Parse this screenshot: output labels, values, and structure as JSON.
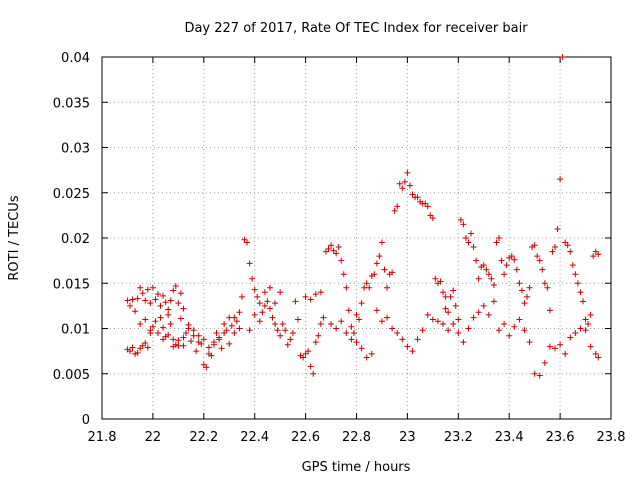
{
  "chart_data": {
    "type": "scatter",
    "title": "Day 227 of 2017, Rate Of TEC Index for receiver bair",
    "xlabel": "GPS time / hours",
    "ylabel": "ROTI / TECUs",
    "xlim": [
      21.8,
      23.8
    ],
    "ylim": [
      0,
      0.04
    ],
    "x_ticks": [
      "21.8",
      "22",
      "22.2",
      "22.4",
      "22.6",
      "22.8",
      "23",
      "23.2",
      "23.4",
      "23.6",
      "23.8"
    ],
    "y_ticks": [
      "0",
      "0.005",
      "0.01",
      "0.015",
      "0.02",
      "0.025",
      "0.03",
      "0.035",
      "0.04"
    ],
    "grid": true,
    "marker": "plus",
    "color": "#cc0000",
    "series": [
      {
        "points": [
          [
            21.9,
            0.0131
          ],
          [
            21.91,
            0.0125
          ],
          [
            21.92,
            0.0132
          ],
          [
            21.93,
            0.0119
          ],
          [
            21.94,
            0.0133
          ],
          [
            21.95,
            0.0145
          ],
          [
            21.96,
            0.0139
          ],
          [
            21.97,
            0.0131
          ],
          [
            21.98,
            0.0143
          ],
          [
            21.99,
            0.0128
          ],
          [
            22.0,
            0.0145
          ],
          [
            22.01,
            0.0132
          ],
          [
            22.02,
            0.0138
          ],
          [
            22.03,
            0.0125
          ],
          [
            22.04,
            0.0136
          ],
          [
            22.05,
            0.0129
          ],
          [
            22.06,
            0.0121
          ],
          [
            22.07,
            0.0131
          ],
          [
            22.08,
            0.0142
          ],
          [
            22.09,
            0.0147
          ],
          [
            22.1,
            0.0128
          ],
          [
            22.11,
            0.0139
          ],
          [
            22.12,
            0.0122
          ],
          [
            21.9,
            0.0077
          ],
          [
            21.91,
            0.0075
          ],
          [
            21.92,
            0.0079
          ],
          [
            21.93,
            0.0072
          ],
          [
            21.94,
            0.0073
          ],
          [
            21.95,
            0.0078
          ],
          [
            21.96,
            0.0081
          ],
          [
            21.97,
            0.0084
          ],
          [
            21.98,
            0.0079
          ],
          [
            21.99,
            0.0095
          ],
          [
            21.95,
            0.0105
          ],
          [
            21.97,
            0.011
          ],
          [
            21.99,
            0.0098
          ],
          [
            22.0,
            0.0102
          ],
          [
            22.01,
            0.0108
          ],
          [
            22.02,
            0.0095
          ],
          [
            22.03,
            0.0112
          ],
          [
            22.04,
            0.0101
          ],
          [
            22.05,
            0.0091
          ],
          [
            22.06,
            0.0115
          ],
          [
            22.07,
            0.0105
          ],
          [
            22.08,
            0.0088
          ],
          [
            22.09,
            0.0082
          ],
          [
            22.1,
            0.0087
          ],
          [
            22.11,
            0.0111
          ],
          [
            22.12,
            0.0081
          ],
          [
            22.13,
            0.0095
          ],
          [
            22.14,
            0.0104
          ],
          [
            22.15,
            0.0086
          ],
          [
            22.16,
            0.0098
          ],
          [
            22.17,
            0.0075
          ],
          [
            22.18,
            0.0092
          ],
          [
            22.19,
            0.0083
          ],
          [
            22.2,
            0.006
          ],
          [
            22.21,
            0.0057
          ],
          [
            22.22,
            0.0072
          ],
          [
            22.23,
            0.007
          ],
          [
            22.24,
            0.0082
          ],
          [
            22.25,
            0.0095
          ],
          [
            22.26,
            0.0088
          ],
          [
            22.27,
            0.0078
          ],
          [
            22.28,
            0.0105
          ],
          [
            22.29,
            0.0098
          ],
          [
            22.3,
            0.0112
          ],
          [
            22.31,
            0.0103
          ],
          [
            22.32,
            0.0095
          ],
          [
            22.33,
            0.0108
          ],
          [
            22.34,
            0.0118
          ],
          [
            22.35,
            0.0135
          ],
          [
            22.36,
            0.0198
          ],
          [
            22.37,
            0.0195
          ],
          [
            22.38,
            0.0172
          ],
          [
            22.39,
            0.0155
          ],
          [
            22.4,
            0.0143
          ],
          [
            22.41,
            0.0135
          ],
          [
            22.42,
            0.0128
          ],
          [
            22.43,
            0.0118
          ],
          [
            22.44,
            0.0125
          ],
          [
            22.45,
            0.013
          ],
          [
            22.46,
            0.0122
          ],
          [
            22.47,
            0.0112
          ],
          [
            22.48,
            0.0105
          ],
          [
            22.49,
            0.0098
          ],
          [
            22.5,
            0.0092
          ],
          [
            22.02,
            0.0095
          ],
          [
            22.04,
            0.0088
          ],
          [
            22.06,
            0.0093
          ],
          [
            22.08,
            0.008
          ],
          [
            22.1,
            0.0081
          ],
          [
            22.12,
            0.009
          ],
          [
            22.14,
            0.01
          ],
          [
            22.16,
            0.0092
          ],
          [
            22.18,
            0.0085
          ],
          [
            22.2,
            0.0088
          ],
          [
            22.22,
            0.0079
          ],
          [
            22.24,
            0.0085
          ],
          [
            22.26,
            0.009
          ],
          [
            22.28,
            0.0095
          ],
          [
            22.3,
            0.0083
          ],
          [
            22.32,
            0.0112
          ],
          [
            22.34,
            0.01
          ],
          [
            22.38,
            0.0098
          ],
          [
            22.4,
            0.0115
          ],
          [
            22.42,
            0.0108
          ],
          [
            22.44,
            0.014
          ],
          [
            22.46,
            0.0145
          ],
          [
            22.48,
            0.0128
          ],
          [
            22.5,
            0.014
          ],
          [
            22.51,
            0.0105
          ],
          [
            22.52,
            0.0098
          ],
          [
            22.53,
            0.0082
          ],
          [
            22.54,
            0.0088
          ],
          [
            22.55,
            0.0095
          ],
          [
            22.56,
            0.013
          ],
          [
            22.57,
            0.011
          ],
          [
            22.58,
            0.007
          ],
          [
            22.59,
            0.0068
          ],
          [
            22.6,
            0.0072
          ],
          [
            22.61,
            0.0075
          ],
          [
            22.62,
            0.0058
          ],
          [
            22.63,
            0.005
          ],
          [
            22.64,
            0.0085
          ],
          [
            22.65,
            0.0092
          ],
          [
            22.66,
            0.0105
          ],
          [
            22.67,
            0.0112
          ],
          [
            22.68,
            0.0185
          ],
          [
            22.69,
            0.0188
          ],
          [
            22.7,
            0.0192
          ],
          [
            22.71,
            0.0186
          ],
          [
            22.72,
            0.0183
          ],
          [
            22.73,
            0.019
          ],
          [
            22.74,
            0.0175
          ],
          [
            22.75,
            0.016
          ],
          [
            22.76,
            0.0145
          ],
          [
            22.77,
            0.012
          ],
          [
            22.78,
            0.0102
          ],
          [
            22.79,
            0.0095
          ],
          [
            22.8,
            0.0115
          ],
          [
            22.81,
            0.011
          ],
          [
            22.82,
            0.0128
          ],
          [
            22.83,
            0.0145
          ],
          [
            22.84,
            0.015
          ],
          [
            22.85,
            0.0145
          ],
          [
            22.86,
            0.0158
          ],
          [
            22.87,
            0.016
          ],
          [
            22.88,
            0.0172
          ],
          [
            22.89,
            0.018
          ],
          [
            22.9,
            0.0195
          ],
          [
            22.91,
            0.0165
          ],
          [
            22.92,
            0.0145
          ],
          [
            22.93,
            0.016
          ],
          [
            22.94,
            0.0162
          ],
          [
            22.95,
            0.023
          ],
          [
            22.96,
            0.0235
          ],
          [
            22.97,
            0.026
          ],
          [
            22.98,
            0.0255
          ],
          [
            22.99,
            0.0262
          ],
          [
            23.0,
            0.0272
          ],
          [
            23.01,
            0.0258
          ],
          [
            23.02,
            0.0248
          ],
          [
            23.03,
            0.0245
          ],
          [
            23.04,
            0.0245
          ],
          [
            23.05,
            0.024
          ],
          [
            23.06,
            0.0238
          ],
          [
            23.07,
            0.0238
          ],
          [
            23.08,
            0.0235
          ],
          [
            23.09,
            0.0225
          ],
          [
            23.1,
            0.0222
          ],
          [
            23.11,
            0.0155
          ],
          [
            23.12,
            0.015
          ],
          [
            23.13,
            0.0152
          ],
          [
            23.14,
            0.014
          ],
          [
            23.15,
            0.0135
          ],
          [
            22.6,
            0.0135
          ],
          [
            22.62,
            0.0132
          ],
          [
            22.64,
            0.0138
          ],
          [
            22.66,
            0.014
          ],
          [
            22.7,
            0.0105
          ],
          [
            22.72,
            0.01
          ],
          [
            22.74,
            0.0108
          ],
          [
            22.76,
            0.0095
          ],
          [
            22.78,
            0.0088
          ],
          [
            22.8,
            0.0085
          ],
          [
            22.82,
            0.0078
          ],
          [
            22.84,
            0.0068
          ],
          [
            22.86,
            0.0072
          ],
          [
            22.88,
            0.012
          ],
          [
            22.9,
            0.0108
          ],
          [
            22.92,
            0.0112
          ],
          [
            22.94,
            0.01
          ],
          [
            22.96,
            0.0095
          ],
          [
            22.98,
            0.0088
          ],
          [
            23.0,
            0.008
          ],
          [
            23.02,
            0.0075
          ],
          [
            23.04,
            0.0088
          ],
          [
            23.06,
            0.0098
          ],
          [
            23.08,
            0.0115
          ],
          [
            23.1,
            0.011
          ],
          [
            23.12,
            0.0108
          ],
          [
            23.14,
            0.0105
          ],
          [
            23.16,
            0.0098
          ],
          [
            23.18,
            0.0105
          ],
          [
            23.15,
            0.0122
          ],
          [
            23.16,
            0.0118
          ],
          [
            23.17,
            0.0135
          ],
          [
            23.18,
            0.0142
          ],
          [
            23.19,
            0.0125
          ],
          [
            23.2,
            0.011
          ],
          [
            23.21,
            0.022
          ],
          [
            23.22,
            0.0215
          ],
          [
            23.23,
            0.02
          ],
          [
            23.24,
            0.0195
          ],
          [
            23.25,
            0.0205
          ],
          [
            23.26,
            0.019
          ],
          [
            23.27,
            0.0175
          ],
          [
            23.28,
            0.0155
          ],
          [
            23.29,
            0.0168
          ],
          [
            23.3,
            0.017
          ],
          [
            23.31,
            0.0165
          ],
          [
            23.32,
            0.016
          ],
          [
            23.33,
            0.0155
          ],
          [
            23.34,
            0.0148
          ],
          [
            23.35,
            0.0195
          ],
          [
            23.36,
            0.02
          ],
          [
            23.37,
            0.0175
          ],
          [
            23.38,
            0.016
          ],
          [
            23.39,
            0.017
          ],
          [
            23.4,
            0.0178
          ],
          [
            23.41,
            0.018
          ],
          [
            23.42,
            0.0176
          ],
          [
            23.43,
            0.0165
          ],
          [
            23.44,
            0.015
          ],
          [
            23.45,
            0.0142
          ],
          [
            23.46,
            0.0128
          ],
          [
            23.47,
            0.0135
          ],
          [
            23.48,
            0.0145
          ],
          [
            23.49,
            0.019
          ],
          [
            23.5,
            0.0192
          ],
          [
            23.51,
            0.018
          ],
          [
            23.52,
            0.0175
          ],
          [
            23.53,
            0.0165
          ],
          [
            23.54,
            0.015
          ],
          [
            23.55,
            0.0145
          ],
          [
            23.56,
            0.012
          ],
          [
            23.57,
            0.0185
          ],
          [
            23.58,
            0.019
          ],
          [
            23.59,
            0.021
          ],
          [
            23.6,
            0.0265
          ],
          [
            23.61,
            0.04
          ],
          [
            23.62,
            0.0195
          ],
          [
            23.63,
            0.0192
          ],
          [
            23.64,
            0.0185
          ],
          [
            23.65,
            0.017
          ],
          [
            23.66,
            0.016
          ],
          [
            23.67,
            0.015
          ],
          [
            23.68,
            0.014
          ],
          [
            23.69,
            0.013
          ],
          [
            23.7,
            0.011
          ],
          [
            23.71,
            0.0105
          ],
          [
            23.72,
            0.0115
          ],
          [
            23.73,
            0.018
          ],
          [
            23.74,
            0.0185
          ],
          [
            23.75,
            0.0182
          ],
          [
            23.2,
            0.0095
          ],
          [
            23.22,
            0.0085
          ],
          [
            23.24,
            0.01
          ],
          [
            23.26,
            0.0112
          ],
          [
            23.28,
            0.0118
          ],
          [
            23.3,
            0.0125
          ],
          [
            23.32,
            0.0115
          ],
          [
            23.34,
            0.013
          ],
          [
            23.36,
            0.0098
          ],
          [
            23.38,
            0.0105
          ],
          [
            23.4,
            0.0092
          ],
          [
            23.42,
            0.0102
          ],
          [
            23.44,
            0.011
          ],
          [
            23.46,
            0.0098
          ],
          [
            23.48,
            0.0085
          ],
          [
            23.5,
            0.005
          ],
          [
            23.52,
            0.0048
          ],
          [
            23.54,
            0.0062
          ],
          [
            23.56,
            0.008
          ],
          [
            23.58,
            0.0078
          ],
          [
            23.6,
            0.0082
          ],
          [
            23.62,
            0.0072
          ],
          [
            23.64,
            0.009
          ],
          [
            23.66,
            0.0095
          ],
          [
            23.68,
            0.01
          ],
          [
            23.7,
            0.0098
          ],
          [
            23.72,
            0.008
          ],
          [
            23.74,
            0.0072
          ],
          [
            23.75,
            0.0068
          ]
        ]
      }
    ]
  }
}
